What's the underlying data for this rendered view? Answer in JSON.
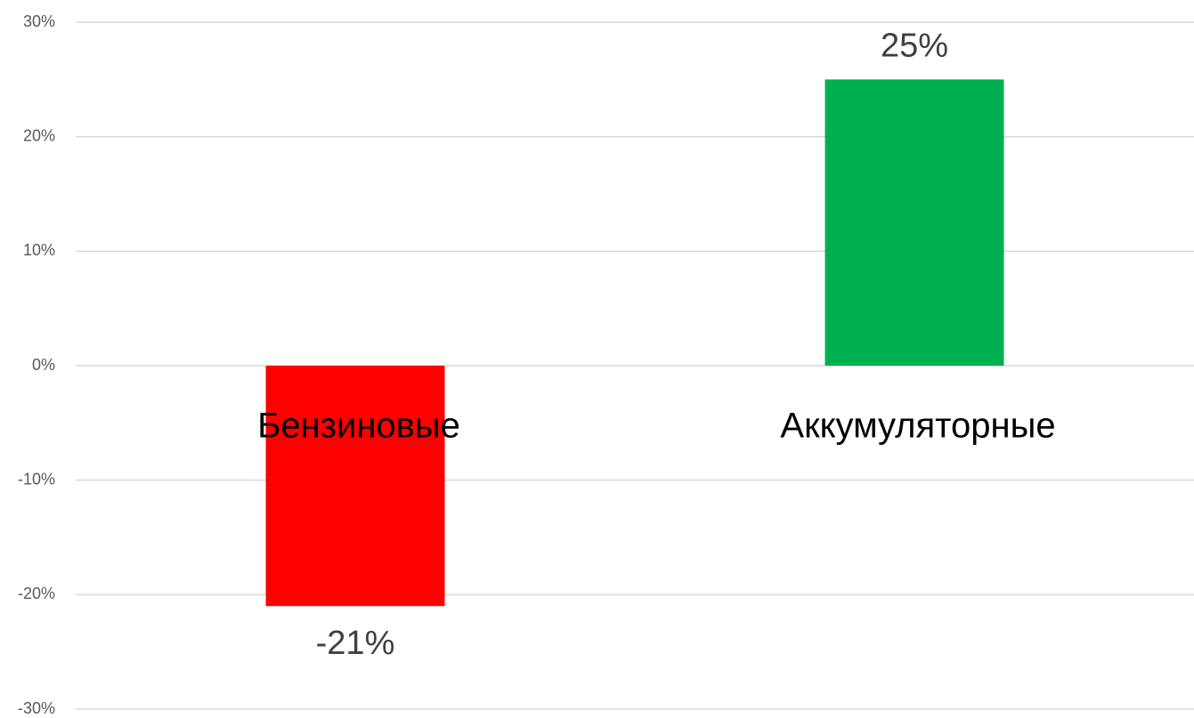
{
  "chart_data": {
    "type": "bar",
    "categories": [
      "Бензиновые",
      "Аккумуляторные"
    ],
    "values": [
      -21,
      25
    ],
    "value_labels": [
      "-21%",
      "25%"
    ],
    "colors": [
      "#ff0000",
      "#00b050"
    ],
    "ylim": [
      -30,
      30
    ],
    "yticks": [
      {
        "value": -30,
        "label": "-30%"
      },
      {
        "value": -20,
        "label": "-20%"
      },
      {
        "value": -10,
        "label": "-10%"
      },
      {
        "value": 0,
        "label": "0%"
      },
      {
        "value": 10,
        "label": "10%"
      },
      {
        "value": 20,
        "label": "20%"
      },
      {
        "value": 30,
        "label": "30%"
      }
    ],
    "grid": true
  }
}
